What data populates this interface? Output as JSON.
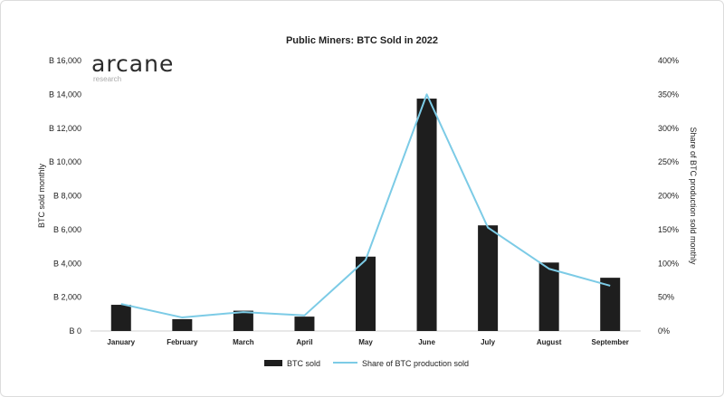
{
  "brand": {
    "name": "arcane",
    "sub": "research"
  },
  "chart_data": {
    "type": "bar",
    "title": "Public Miners: BTC Sold in 2022",
    "categories": [
      "January",
      "February",
      "March",
      "April",
      "May",
      "June",
      "July",
      "August",
      "September"
    ],
    "series": [
      {
        "name": "BTC sold",
        "type": "bar",
        "axis": "left",
        "values": [
          1550,
          700,
          1200,
          850,
          4400,
          13750,
          6250,
          4050,
          3150
        ],
        "color": "#1e1e1e"
      },
      {
        "name": "Share of BTC production sold",
        "type": "line",
        "axis": "right",
        "values": [
          40,
          20,
          28,
          23,
          105,
          350,
          153,
          92,
          67
        ],
        "color": "#7ccbe6"
      }
    ],
    "ylabel": "BTC sold monthly",
    "y2label": "Share of BTC production sold monthly",
    "ylim": [
      0,
      16000
    ],
    "y2lim": [
      0,
      400
    ],
    "yticks": [
      "B 0",
      "B 2,000",
      "B 4,000",
      "B 6,000",
      "B 8,000",
      "B 10,000",
      "B 12,000",
      "B 14,000",
      "B 16,000"
    ],
    "y2ticks": [
      "0%",
      "50%",
      "100%",
      "150%",
      "200%",
      "250%",
      "300%",
      "350%",
      "400%"
    ],
    "grid": false,
    "legend": "bottom-center"
  }
}
